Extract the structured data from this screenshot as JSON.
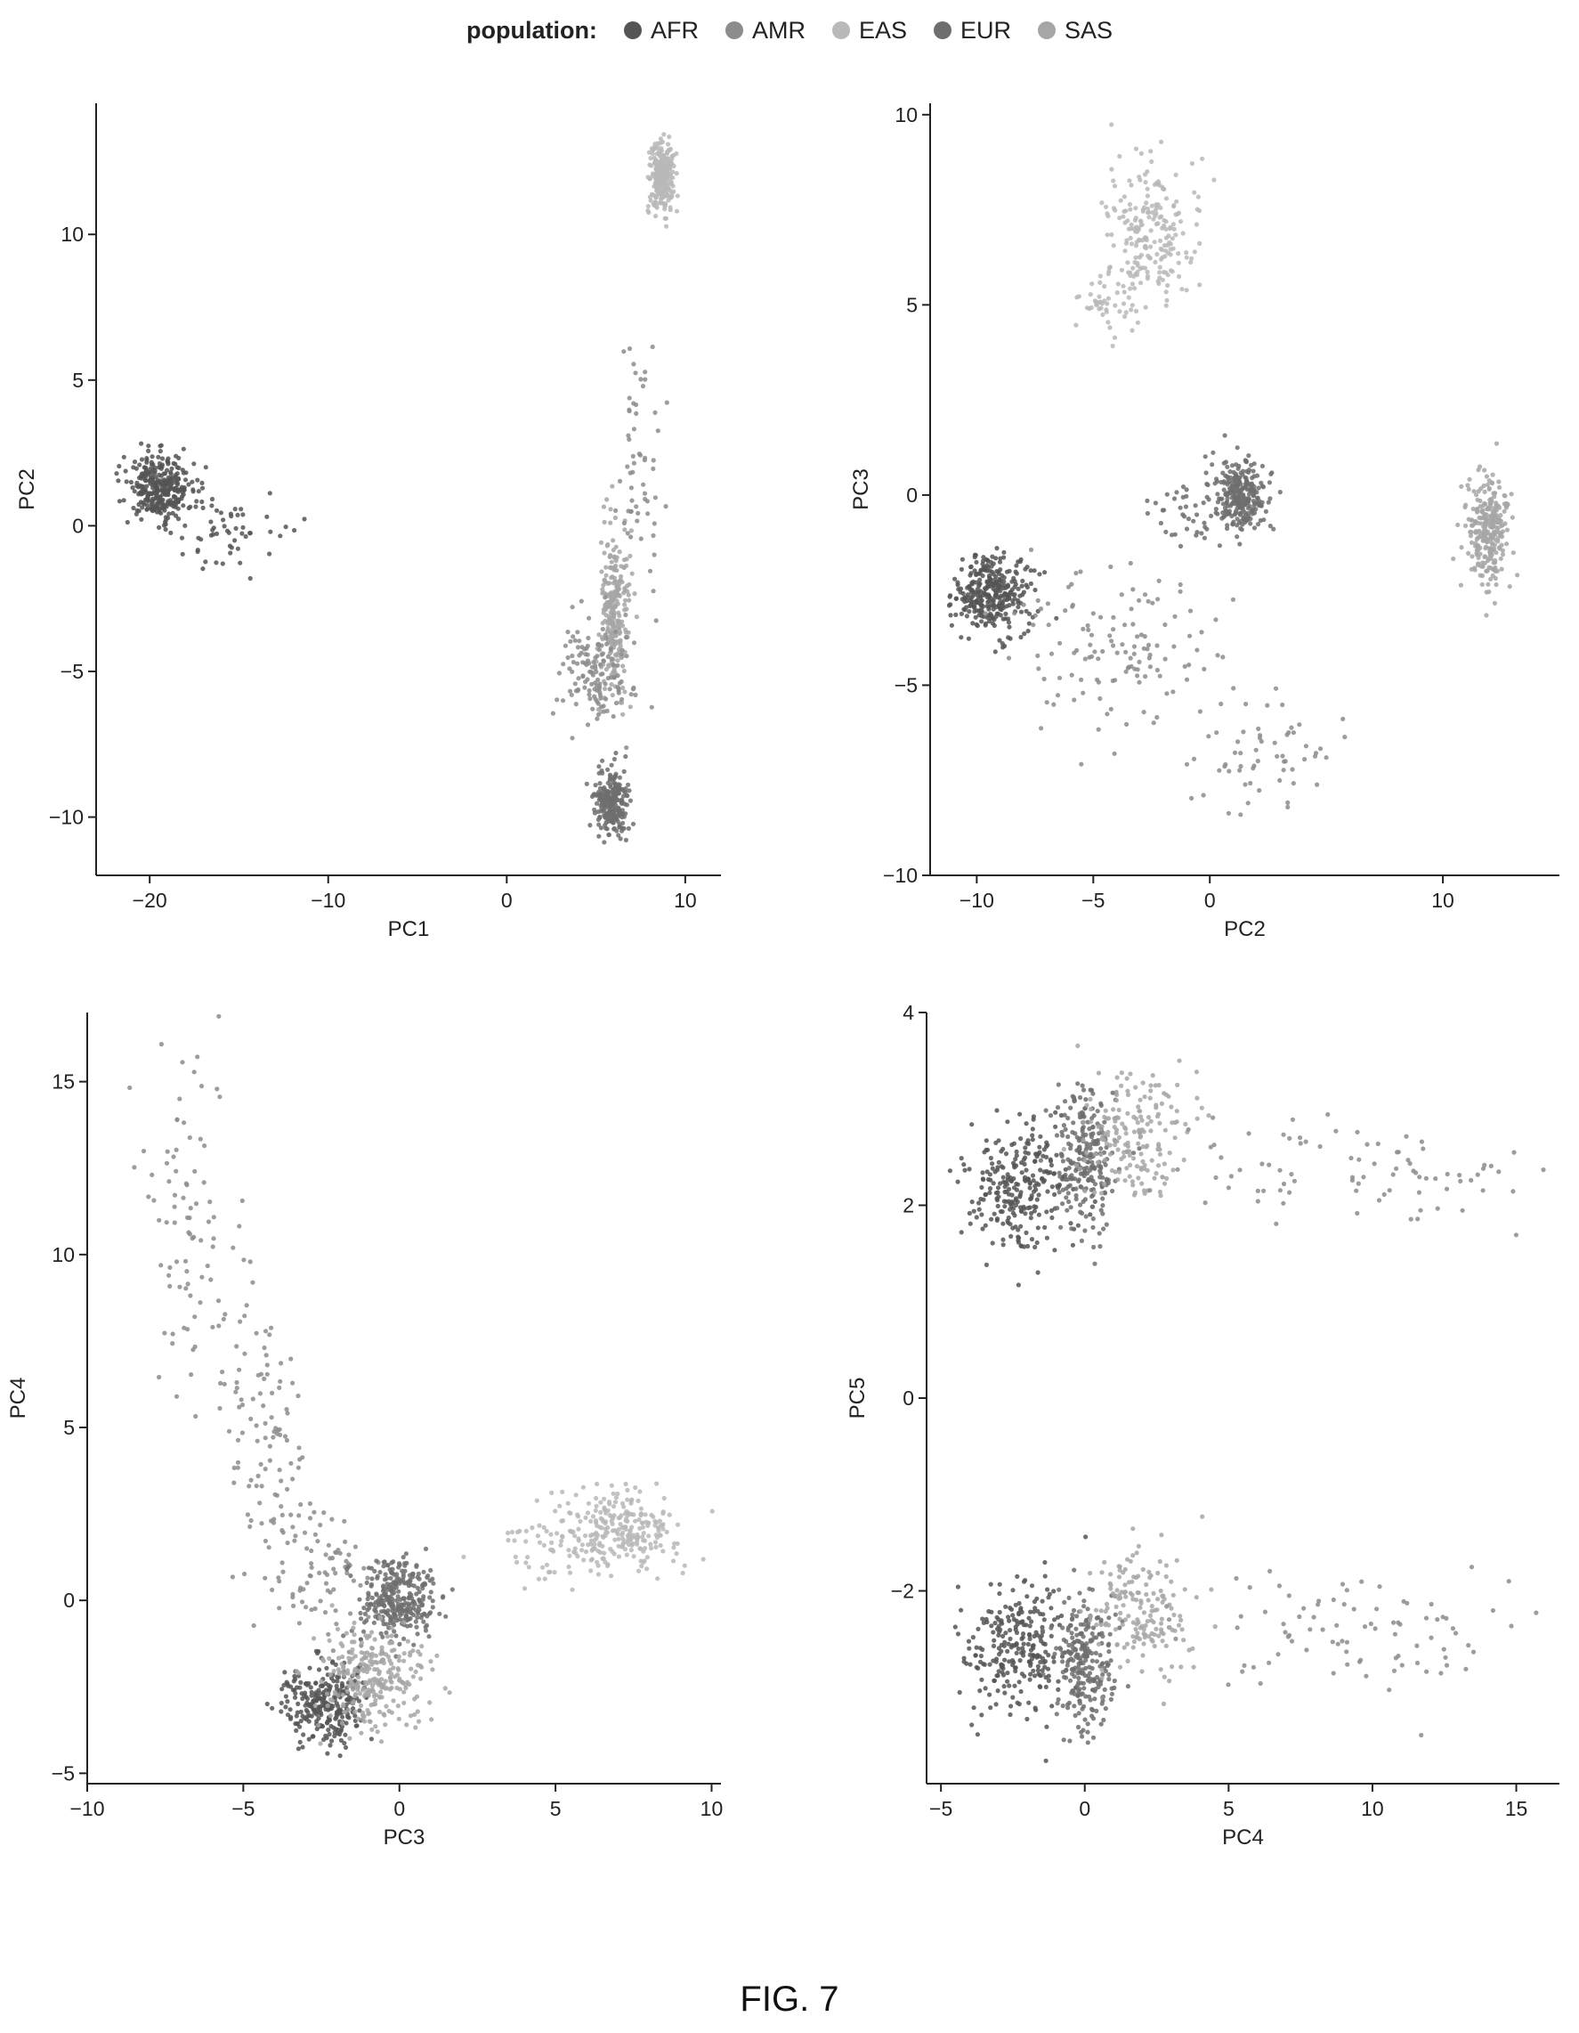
{
  "legend": {
    "title": "population:",
    "items": [
      {
        "label": "AFR",
        "color": "#555555"
      },
      {
        "label": "AMR",
        "color": "#8c8c8c"
      },
      {
        "label": "EAS",
        "color": "#b9b9b9"
      },
      {
        "label": "EUR",
        "color": "#6e6e6e"
      },
      {
        "label": "SAS",
        "color": "#a6a6a6"
      }
    ]
  },
  "caption": "FIG. 7",
  "chart_data": [
    {
      "type": "scatter",
      "xlabel": "PC1",
      "ylabel": "PC2",
      "xlim": [
        -23,
        12
      ],
      "ylim": [
        -12,
        14.5
      ],
      "xticks": [
        -20,
        -10,
        0,
        10
      ],
      "yticks": [
        -10,
        -5,
        0,
        5,
        10
      ],
      "clusters": [
        {
          "population": "AFR",
          "center": [
            -19.5,
            1.3
          ],
          "spread": [
            0.9,
            0.55
          ],
          "n": 320
        },
        {
          "population": "AFR",
          "center": [
            -16.0,
            -0.2
          ],
          "spread": [
            1.6,
            0.8
          ],
          "n": 60
        },
        {
          "population": "EAS",
          "center": [
            8.7,
            12.0
          ],
          "spread": [
            0.35,
            0.6
          ],
          "n": 280
        },
        {
          "population": "SAS",
          "center": [
            6.0,
            -3.0
          ],
          "spread": [
            0.4,
            1.4
          ],
          "n": 260
        },
        {
          "population": "AMR",
          "center": [
            5.0,
            -5.0
          ],
          "spread": [
            1.0,
            0.9
          ],
          "n": 140
        },
        {
          "population": "AMR",
          "center": [
            7.5,
            1.5
          ],
          "spread": [
            0.7,
            2.2
          ],
          "n": 60
        },
        {
          "population": "EUR",
          "center": [
            5.9,
            -9.5
          ],
          "spread": [
            0.45,
            0.6
          ],
          "n": 260
        }
      ]
    },
    {
      "type": "scatter",
      "xlabel": "PC2",
      "ylabel": "PC3",
      "xlim": [
        -12,
        15
      ],
      "ylim": [
        -10,
        10.3
      ],
      "xticks": [
        -10,
        -5,
        0,
        10
      ],
      "yticks": [
        -10,
        -5,
        0,
        5,
        10
      ],
      "clusters": [
        {
          "population": "EAS",
          "center": [
            -2.5,
            6.8
          ],
          "spread": [
            1.1,
            0.9
          ],
          "n": 220
        },
        {
          "population": "EAS",
          "center": [
            -4.5,
            4.8
          ],
          "spread": [
            0.6,
            0.5
          ],
          "n": 40
        },
        {
          "population": "EUR",
          "center": [
            1.3,
            0.0
          ],
          "spread": [
            0.55,
            0.45
          ],
          "n": 280
        },
        {
          "population": "EUR",
          "center": [
            -1.0,
            -0.5
          ],
          "spread": [
            0.9,
            0.5
          ],
          "n": 40
        },
        {
          "population": "SAS",
          "center": [
            12.0,
            -1.0
          ],
          "spread": [
            0.45,
            0.7
          ],
          "n": 280
        },
        {
          "population": "AFR",
          "center": [
            -9.3,
            -2.6
          ],
          "spread": [
            0.8,
            0.5
          ],
          "n": 320
        },
        {
          "population": "AMR",
          "center": [
            -4.0,
            -4.0
          ],
          "spread": [
            2.4,
            1.0
          ],
          "n": 130
        },
        {
          "population": "AMR",
          "center": [
            2.5,
            -6.8
          ],
          "spread": [
            1.4,
            0.8
          ],
          "n": 60
        }
      ]
    },
    {
      "type": "scatter",
      "xlabel": "PC3",
      "ylabel": "PC4",
      "xlim": [
        -10,
        10.3
      ],
      "ylim": [
        -5.3,
        17
      ],
      "xticks": [
        -10,
        -5,
        0,
        5,
        10
      ],
      "yticks": [
        -5,
        0,
        5,
        10,
        15
      ],
      "clusters": [
        {
          "population": "AMR",
          "center": [
            -6.5,
            11.0
          ],
          "spread": [
            0.8,
            2.5
          ],
          "n": 90
        },
        {
          "population": "AMR",
          "center": [
            -4.3,
            4.5
          ],
          "spread": [
            0.7,
            2.0
          ],
          "n": 110
        },
        {
          "population": "AMR",
          "center": [
            -2.5,
            0.5
          ],
          "spread": [
            0.8,
            0.9
          ],
          "n": 70
        },
        {
          "population": "EUR",
          "center": [
            0.0,
            0.0
          ],
          "spread": [
            0.6,
            0.6
          ],
          "n": 300
        },
        {
          "population": "AFR",
          "center": [
            -2.4,
            -3.0
          ],
          "spread": [
            0.7,
            0.6
          ],
          "n": 280
        },
        {
          "population": "SAS",
          "center": [
            -0.8,
            -2.2
          ],
          "spread": [
            0.9,
            0.7
          ],
          "n": 280
        },
        {
          "population": "EAS",
          "center": [
            7.0,
            2.0
          ],
          "spread": [
            1.0,
            0.6
          ],
          "n": 260
        },
        {
          "population": "EAS",
          "center": [
            4.5,
            1.3
          ],
          "spread": [
            0.9,
            0.5
          ],
          "n": 40
        }
      ]
    },
    {
      "type": "scatter",
      "xlabel": "PC4",
      "ylabel": "PC5",
      "xlim": [
        -5.5,
        16.5
      ],
      "ylim": [
        -4,
        4
      ],
      "xticks": [
        -5,
        0,
        5,
        10,
        15
      ],
      "yticks": [
        -2,
        0,
        2,
        4
      ],
      "clusters": [
        {
          "population": "AFR",
          "center": [
            -2.3,
            2.2
          ],
          "spread": [
            0.9,
            0.35
          ],
          "n": 260
        },
        {
          "population": "EUR",
          "center": [
            0.0,
            2.5
          ],
          "spread": [
            0.5,
            0.35
          ],
          "n": 240
        },
        {
          "population": "SAS",
          "center": [
            1.8,
            2.7
          ],
          "spread": [
            0.9,
            0.35
          ],
          "n": 180
        },
        {
          "population": "AMR",
          "center": [
            10.0,
            2.4
          ],
          "spread": [
            3.2,
            0.3
          ],
          "n": 90
        },
        {
          "population": "AFR",
          "center": [
            -2.3,
            -2.6
          ],
          "spread": [
            0.9,
            0.35
          ],
          "n": 260
        },
        {
          "population": "EUR",
          "center": [
            0.0,
            -2.8
          ],
          "spread": [
            0.5,
            0.35
          ],
          "n": 240
        },
        {
          "population": "SAS",
          "center": [
            2.0,
            -2.2
          ],
          "spread": [
            0.9,
            0.35
          ],
          "n": 170
        },
        {
          "population": "AMR",
          "center": [
            10.0,
            -2.4
          ],
          "spread": [
            3.2,
            0.3
          ],
          "n": 90
        }
      ]
    }
  ]
}
